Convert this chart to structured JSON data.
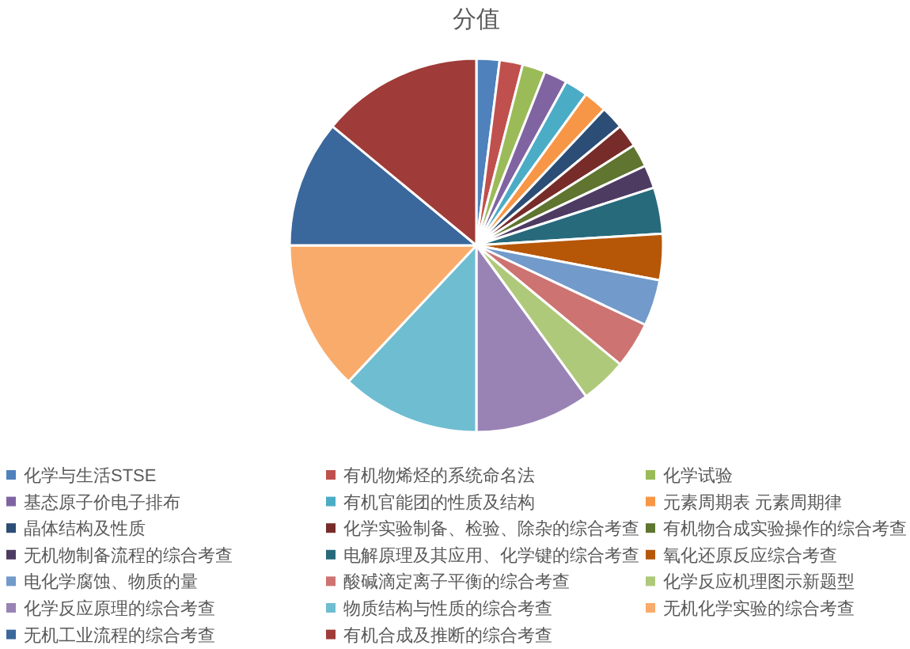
{
  "chart_data": {
    "type": "pie",
    "title": "分值",
    "categories": [
      "化学与生活STSE",
      "有机物烯烃的系统命名法",
      "化学试验",
      "基态原子价电子排布",
      "有机官能团的性质及结构",
      "元素周期表 元素周期律",
      "晶体结构及性质",
      "化学实验制备、检验、除杂的综合考查",
      "有机物合成实验操作的综合考查",
      "无机物制备流程的综合考查",
      "电解原理及其应用、化学键的综合考查",
      "氧化还原反应综合考查",
      "电化学腐蚀、物质的量",
      "酸碱滴定离子平衡的综合考查",
      "化学反应机理图示新题型",
      "化学反应原理的综合考查",
      "物质结构与性质的综合考查",
      "无机化学实验的综合考查",
      "无机工业流程的综合考查",
      "有机合成及推断的综合考查"
    ],
    "values": [
      2,
      2,
      2,
      2,
      2,
      2,
      2,
      2,
      2,
      2,
      4,
      4,
      4,
      4,
      4,
      10,
      12,
      13,
      11,
      14
    ],
    "colors": [
      "#4f81bd",
      "#c0504d",
      "#9bbb59",
      "#8064a2",
      "#4bacc6",
      "#f79646",
      "#2c4d75",
      "#772c2a",
      "#5f7530",
      "#4d3b62",
      "#276a7c",
      "#b65708",
      "#729aca",
      "#cd7371",
      "#afc97a",
      "#9983b5",
      "#6fbdd1",
      "#f9ab6b",
      "#3a679c",
      "#9f3b38"
    ],
    "legend": "bottom"
  }
}
